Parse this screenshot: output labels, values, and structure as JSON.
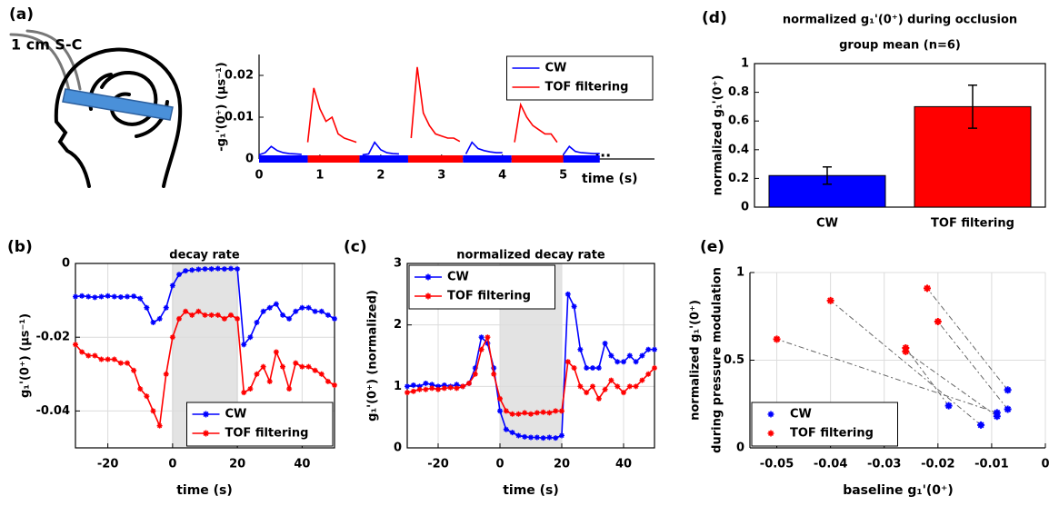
{
  "chart_data": [
    {
      "type": "line",
      "panel_label": "(a)",
      "annotation": "1 cm S-C",
      "ellipsis": "...",
      "ylabel": "-g₁'(0⁺) (μs⁻¹)",
      "xlabel": "time (s)",
      "x": [
        0,
        0.1,
        0.2,
        0.3,
        0.4,
        0.5,
        0.6,
        0.7,
        0.8,
        0.9,
        1,
        1.1,
        1.2,
        1.3,
        1.4,
        1.5,
        1.6,
        1.7,
        1.8,
        1.9,
        2,
        2.1,
        2.2,
        2.3,
        2.4,
        2.5,
        2.6,
        2.7,
        2.8,
        2.9,
        3,
        3.1,
        3.2,
        3.3,
        3.4,
        3.5,
        3.6,
        3.7,
        3.8,
        3.9,
        4,
        4.1,
        4.2,
        4.3,
        4.4,
        4.5,
        4.6,
        4.7,
        4.8,
        4.9,
        5,
        5.1,
        5.2,
        5.3,
        5.4,
        5.5,
        5.6
      ],
      "series": [
        {
          "name": "CW",
          "color": "#0000ff",
          "spans": [
            [
              0,
              0.8
            ],
            [
              1.65,
              2.45
            ],
            [
              3.35,
              4.15
            ],
            [
              5.0,
              5.6
            ]
          ],
          "values": [
            0.001,
            0.0015,
            0.003,
            0.002,
            0.0015,
            0.0013,
            0.0012,
            0.0011,
            null,
            null,
            null,
            null,
            null,
            null,
            null,
            null,
            null,
            0.001,
            0.0012,
            0.004,
            0.0022,
            0.0015,
            0.0013,
            0.0012,
            null,
            null,
            null,
            null,
            null,
            null,
            null,
            null,
            null,
            null,
            0.0012,
            0.004,
            0.0025,
            0.002,
            0.0017,
            0.0015,
            0.0015,
            null,
            null,
            null,
            null,
            null,
            null,
            null,
            null,
            null,
            0.001,
            0.003,
            0.0018,
            0.0015,
            0.0014,
            0.0013,
            0.0013
          ]
        },
        {
          "name": "TOF filtering",
          "color": "#ff0000",
          "spans": [
            [
              0.8,
              1.65
            ],
            [
              2.45,
              3.35
            ],
            [
              4.15,
              5.0
            ]
          ],
          "values": [
            null,
            null,
            null,
            null,
            null,
            null,
            null,
            null,
            0.004,
            0.017,
            0.012,
            0.009,
            0.01,
            0.006,
            0.005,
            0.0045,
            0.004,
            null,
            null,
            null,
            null,
            null,
            null,
            null,
            null,
            0.005,
            0.022,
            0.011,
            0.008,
            0.006,
            0.0055,
            0.005,
            0.005,
            0.0042,
            null,
            null,
            null,
            null,
            null,
            null,
            null,
            null,
            0.004,
            0.013,
            0.01,
            0.008,
            0.007,
            0.006,
            0.006,
            0.004,
            null,
            null,
            null,
            null,
            null,
            null,
            null
          ]
        }
      ],
      "xlim": [
        0,
        6.5
      ],
      "xticks": [
        0,
        1,
        2,
        3,
        4,
        5
      ],
      "ylim": [
        0,
        0.025
      ],
      "yticks": [
        0,
        0.01,
        0.02
      ],
      "grid": false,
      "legend": "upper right"
    },
    {
      "type": "bar",
      "panel_label": "(d)",
      "title": [
        "normalized g₁'(0⁺) during occlusion",
        "group mean (n=6)"
      ],
      "ylabel": "normalized g₁'(0⁺)",
      "categories": [
        "CW",
        "TOF filtering"
      ],
      "values": [
        0.22,
        0.7
      ],
      "errors": [
        0.06,
        0.15
      ],
      "colors": [
        "#0000ff",
        "#ff0000"
      ],
      "ylim": [
        0,
        1
      ],
      "yticks": [
        0,
        0.2,
        0.4,
        0.6,
        0.8,
        1
      ],
      "grid": false
    },
    {
      "type": "line",
      "panel_label": "(b)",
      "title": "decay rate",
      "xlabel": "time (s)",
      "ylabel": "g₁'(0⁺) (μs⁻¹)",
      "marker": "*",
      "shaded_x": [
        0,
        20
      ],
      "x": [
        -30,
        -28,
        -26,
        -24,
        -22,
        -20,
        -18,
        -16,
        -14,
        -12,
        -10,
        -8,
        -6,
        -4,
        -2,
        0,
        2,
        4,
        6,
        8,
        10,
        12,
        14,
        16,
        18,
        20,
        22,
        24,
        26,
        28,
        30,
        32,
        34,
        36,
        38,
        40,
        42,
        44,
        46,
        48,
        50
      ],
      "series": [
        {
          "name": "CW",
          "color": "#0000ff",
          "values": [
            -0.009,
            -0.0088,
            -0.009,
            -0.0092,
            -0.009,
            -0.0088,
            -0.009,
            -0.0091,
            -0.009,
            -0.0089,
            -0.0095,
            -0.012,
            -0.016,
            -0.015,
            -0.012,
            -0.006,
            -0.003,
            -0.002,
            -0.0018,
            -0.0016,
            -0.0015,
            -0.0015,
            -0.0014,
            -0.0015,
            -0.0014,
            -0.0015,
            -0.022,
            -0.02,
            -0.016,
            -0.013,
            -0.012,
            -0.011,
            -0.014,
            -0.015,
            -0.013,
            -0.012,
            -0.012,
            -0.013,
            -0.013,
            -0.014,
            -0.015
          ]
        },
        {
          "name": "TOF filtering",
          "color": "#ff0000",
          "values": [
            -0.022,
            -0.024,
            -0.025,
            -0.025,
            -0.026,
            -0.026,
            -0.026,
            -0.027,
            -0.027,
            -0.029,
            -0.034,
            -0.036,
            -0.04,
            -0.044,
            -0.03,
            -0.02,
            -0.015,
            -0.013,
            -0.014,
            -0.013,
            -0.014,
            -0.014,
            -0.014,
            -0.015,
            -0.014,
            -0.015,
            -0.035,
            -0.034,
            -0.03,
            -0.028,
            -0.032,
            -0.024,
            -0.028,
            -0.034,
            -0.027,
            -0.028,
            -0.028,
            -0.029,
            -0.03,
            -0.032,
            -0.033
          ]
        }
      ],
      "xlim": [
        -30,
        50
      ],
      "xticks": [
        -20,
        0,
        20,
        40
      ],
      "ylim": [
        -0.05,
        0
      ],
      "yticks": [
        -0.04,
        -0.02,
        0
      ],
      "grid": true,
      "legend": "lower right"
    },
    {
      "type": "line",
      "panel_label": "(c)",
      "title": "normalized decay rate",
      "xlabel": "time (s)",
      "ylabel": "g₁'(0⁺) (normalized)",
      "marker": "*",
      "shaded_x": [
        0,
        20
      ],
      "x": [
        -30,
        -28,
        -26,
        -24,
        -22,
        -20,
        -18,
        -16,
        -14,
        -12,
        -10,
        -8,
        -6,
        -4,
        -2,
        0,
        2,
        4,
        6,
        8,
        10,
        12,
        14,
        16,
        18,
        20,
        22,
        24,
        26,
        28,
        30,
        32,
        34,
        36,
        38,
        40,
        42,
        44,
        46,
        48,
        50
      ],
      "series": [
        {
          "name": "CW",
          "color": "#0000ff",
          "values": [
            1.0,
            1.02,
            1.0,
            1.05,
            1.03,
            1.0,
            1.02,
            1.0,
            1.03,
            1.0,
            1.05,
            1.3,
            1.8,
            1.7,
            1.3,
            0.6,
            0.3,
            0.25,
            0.2,
            0.18,
            0.17,
            0.17,
            0.16,
            0.17,
            0.16,
            0.2,
            2.5,
            2.3,
            1.6,
            1.3,
            1.3,
            1.3,
            1.7,
            1.5,
            1.4,
            1.4,
            1.5,
            1.4,
            1.5,
            1.6,
            1.6
          ]
        },
        {
          "name": "TOF filtering",
          "color": "#ff0000",
          "values": [
            0.9,
            0.92,
            0.95,
            0.95,
            0.97,
            0.95,
            0.97,
            0.98,
            0.97,
            1.0,
            1.05,
            1.2,
            1.6,
            1.8,
            1.2,
            0.8,
            0.6,
            0.55,
            0.55,
            0.57,
            0.55,
            0.57,
            0.58,
            0.57,
            0.6,
            0.6,
            1.4,
            1.3,
            1.0,
            0.9,
            1.0,
            0.8,
            0.95,
            1.1,
            1.0,
            0.9,
            1.0,
            1.0,
            1.1,
            1.2,
            1.3
          ]
        }
      ],
      "xlim": [
        -30,
        50
      ],
      "xticks": [
        -20,
        0,
        20,
        40
      ],
      "ylim": [
        0,
        3
      ],
      "yticks": [
        0,
        1,
        2,
        3
      ],
      "grid": true,
      "legend": "upper left"
    },
    {
      "type": "scatter",
      "panel_label": "(e)",
      "xlabel": "baseline g₁'(0⁺)",
      "ylabel": [
        "normalized g₁'(0⁺)",
        "during pressure modulation"
      ],
      "marker": "*",
      "paired": true,
      "series": [
        {
          "name": "CW",
          "color": "#0000ff",
          "x": [
            -0.009,
            -0.012,
            -0.018,
            -0.009,
            -0.007,
            -0.007
          ],
          "values": [
            0.2,
            0.13,
            0.24,
            0.18,
            0.33,
            0.22
          ]
        },
        {
          "name": "TOF filtering",
          "color": "#ff0000",
          "x": [
            -0.05,
            -0.04,
            -0.026,
            -0.026,
            -0.022,
            -0.02
          ],
          "values": [
            0.62,
            0.84,
            0.57,
            0.55,
            0.91,
            0.72
          ]
        }
      ],
      "xlim": [
        -0.055,
        0
      ],
      "xticks": [
        -0.05,
        -0.04,
        -0.03,
        -0.02,
        -0.01,
        0
      ],
      "ylim": [
        0,
        1
      ],
      "yticks": [
        0,
        0.5,
        1
      ],
      "grid": true,
      "legend": "lower left"
    }
  ]
}
